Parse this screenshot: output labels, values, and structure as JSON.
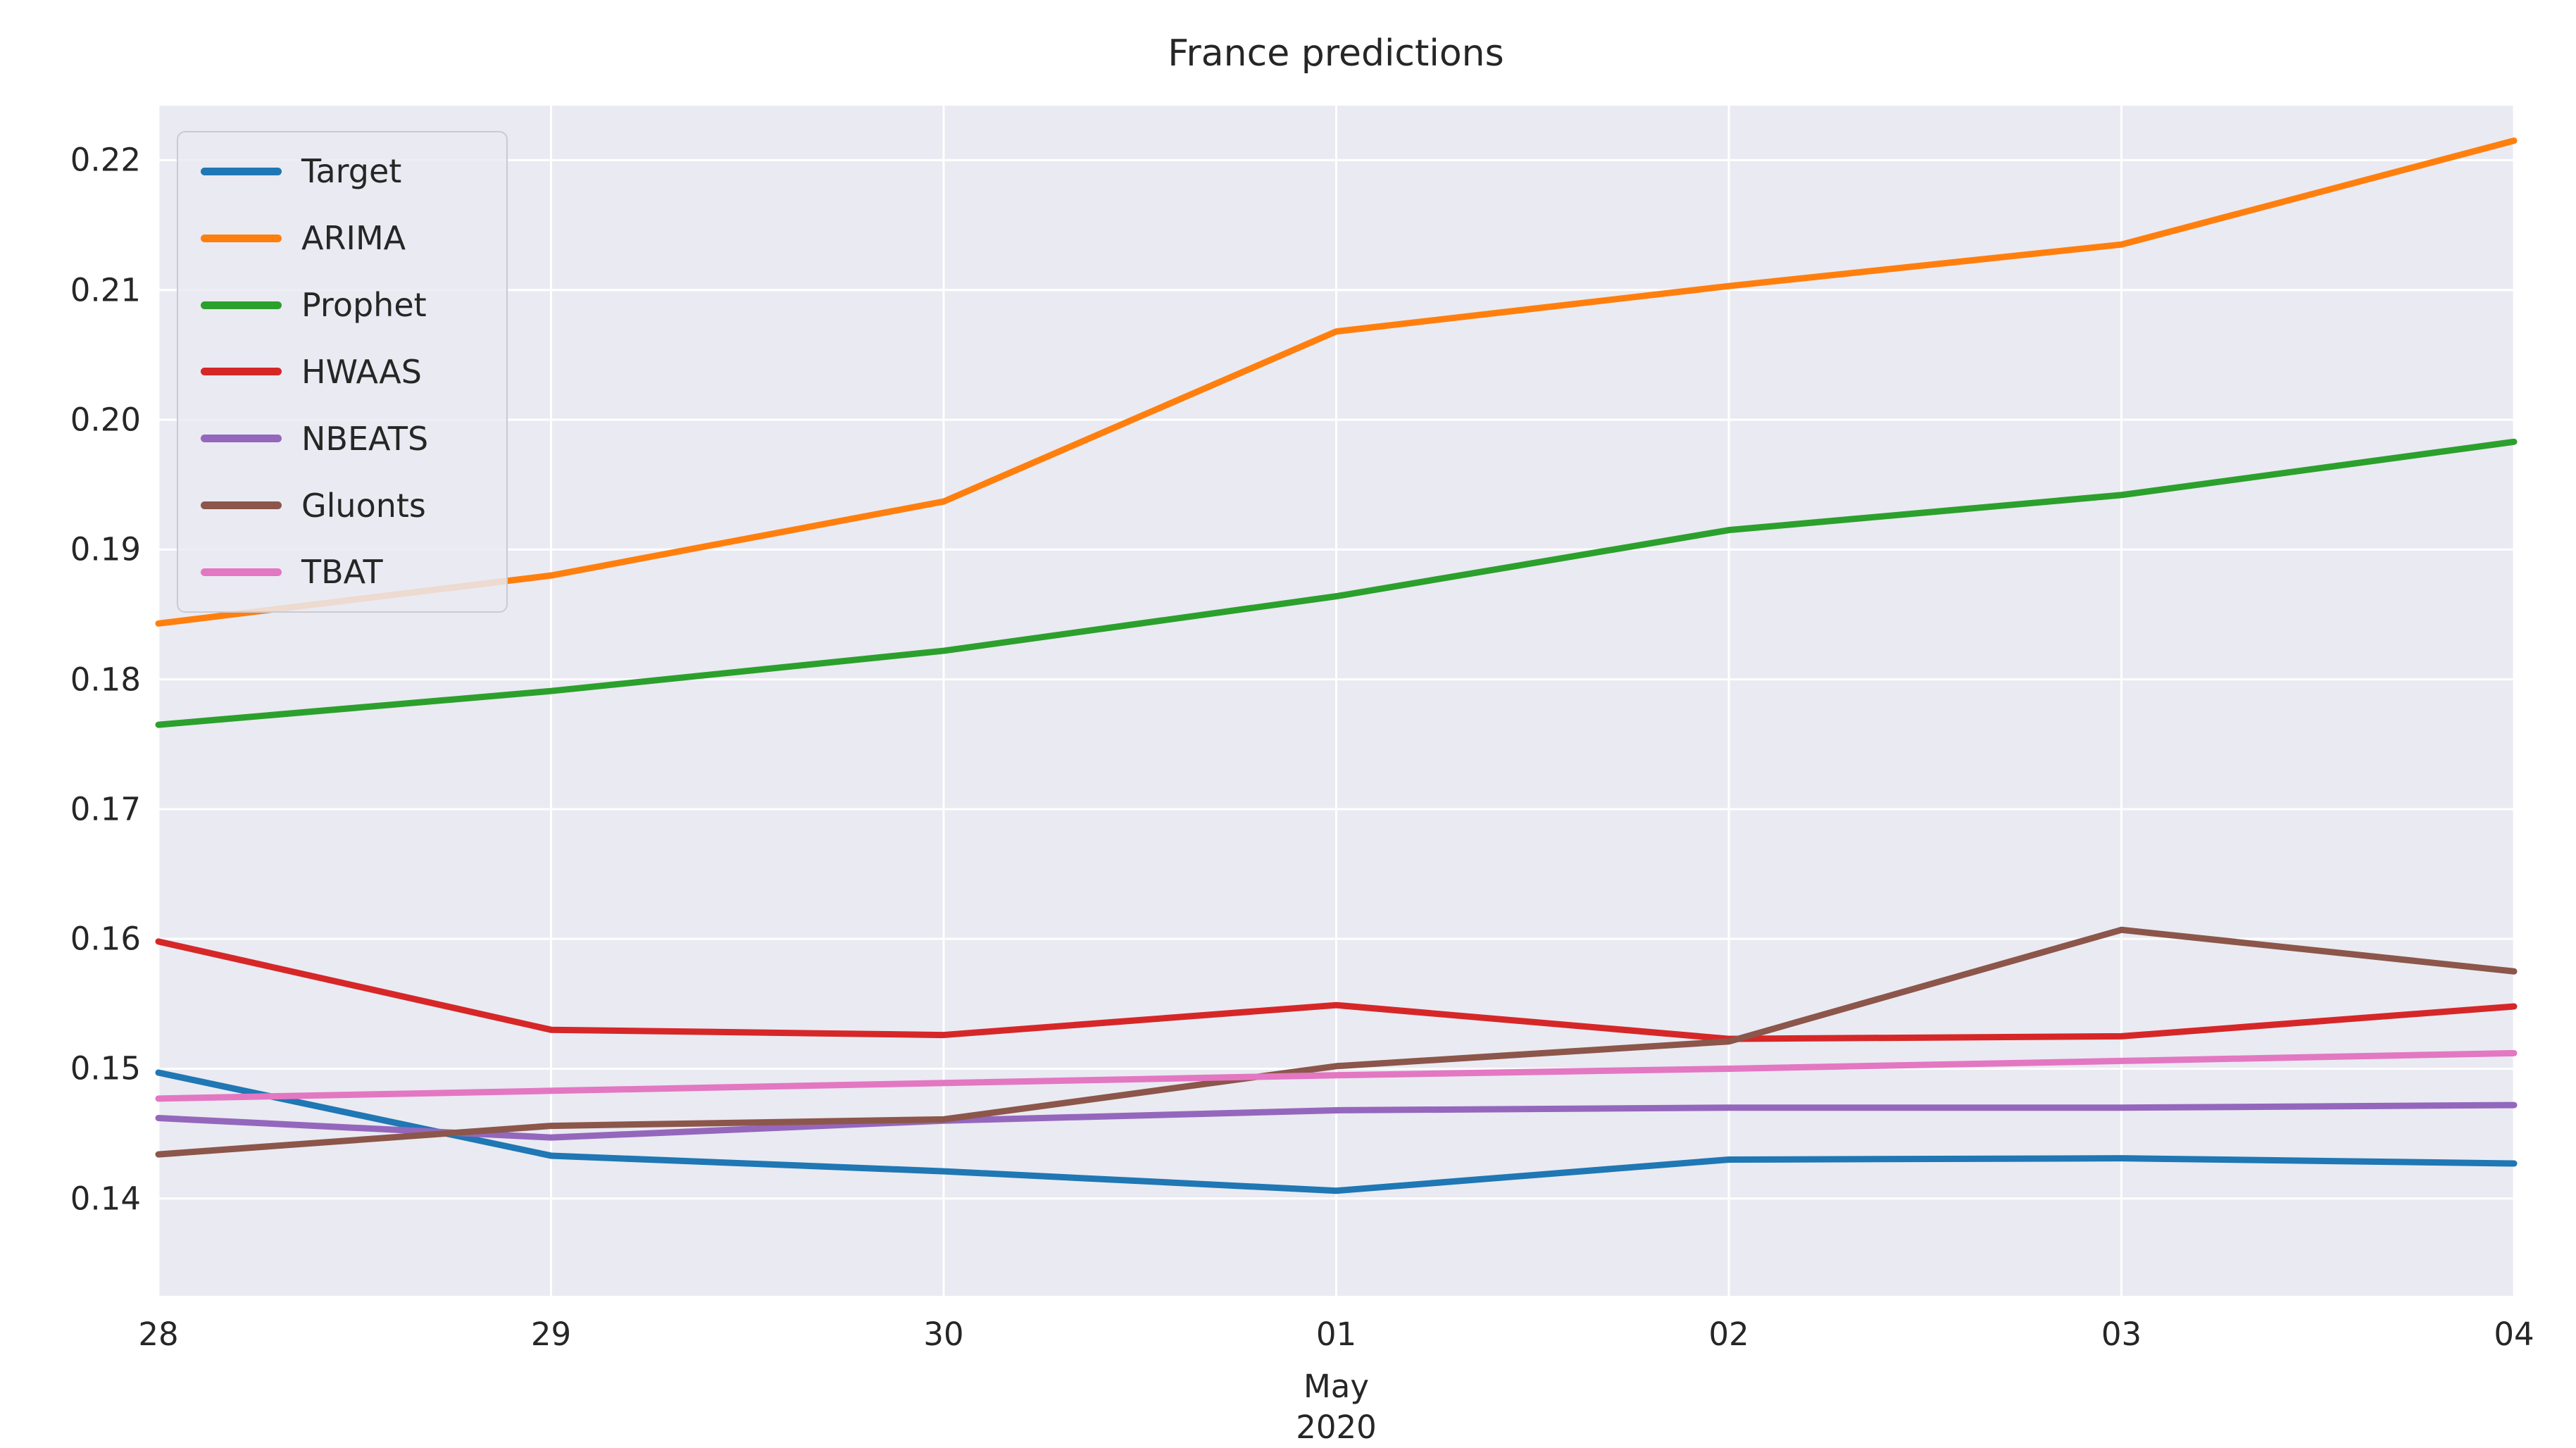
{
  "title": "France predictions",
  "chart_data": {
    "type": "line",
    "title": "France predictions",
    "xlabel": "",
    "ylabel": "",
    "x_tick_labels": [
      "28",
      "29",
      "30",
      "01",
      "02",
      "03",
      "04"
    ],
    "x_sub_labels": [
      "May",
      "2020"
    ],
    "y_ticks": [
      0.14,
      0.15,
      0.16,
      0.17,
      0.18,
      0.19,
      0.2,
      0.21,
      0.22
    ],
    "y_tick_labels": [
      "0.14",
      "0.15",
      "0.16",
      "0.17",
      "0.18",
      "0.19",
      "0.20",
      "0.21",
      "0.22"
    ],
    "ylim": [
      0.1325,
      0.2242
    ],
    "grid": true,
    "legend_position": "upper left",
    "background_color": "#eaeaf2",
    "grid_color": "#ffffff",
    "text_color": "#262626",
    "series": [
      {
        "name": "Target",
        "color": "#1f77b4",
        "values": [
          0.1497,
          0.1433,
          0.1421,
          0.1406,
          0.143,
          0.1431,
          0.1427
        ]
      },
      {
        "name": "ARIMA",
        "color": "#ff7f0e",
        "values": [
          0.1843,
          0.188,
          0.1937,
          0.2068,
          0.2103,
          0.2135,
          0.2215
        ]
      },
      {
        "name": "Prophet",
        "color": "#2ca02c",
        "values": [
          0.1765,
          0.1791,
          0.1822,
          0.1864,
          0.1915,
          0.1942,
          0.1983
        ]
      },
      {
        "name": "HWAAS",
        "color": "#d62728",
        "values": [
          0.1598,
          0.153,
          0.1526,
          0.1549,
          0.1523,
          0.1525,
          0.1548
        ]
      },
      {
        "name": "NBEATS",
        "color": "#9467bd",
        "values": [
          0.1462,
          0.1447,
          0.146,
          0.1468,
          0.147,
          0.147,
          0.1472
        ]
      },
      {
        "name": "Gluonts",
        "color": "#8c564b",
        "values": [
          0.1434,
          0.1456,
          0.1461,
          0.1502,
          0.1521,
          0.1607,
          0.1575
        ]
      },
      {
        "name": "TBAT",
        "color": "#e377c2",
        "values": [
          0.1477,
          0.1483,
          0.1489,
          0.1495,
          0.15,
          0.1506,
          0.1512
        ]
      }
    ]
  }
}
